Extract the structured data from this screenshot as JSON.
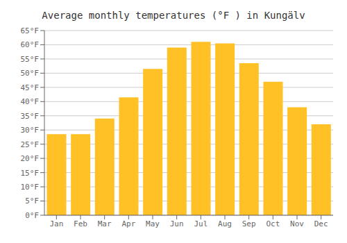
{
  "chart_data": {
    "type": "bar",
    "title": "Average monthly temperatures (°F ) in Kungälv",
    "categories": [
      "Jan",
      "Feb",
      "Mar",
      "Apr",
      "May",
      "Jun",
      "Jul",
      "Aug",
      "Sep",
      "Oct",
      "Nov",
      "Dec"
    ],
    "values": [
      28.5,
      28.5,
      34.0,
      41.5,
      51.5,
      59.0,
      61.0,
      60.5,
      53.5,
      47.0,
      38.0,
      32.0
    ],
    "color": "#FFC125",
    "ylim": [
      0,
      65
    ],
    "yticks": [
      {
        "value": 0,
        "label": "0°F"
      },
      {
        "value": 5,
        "label": "5°F"
      },
      {
        "value": 10,
        "label": "10°F"
      },
      {
        "value": 15,
        "label": "15°F"
      },
      {
        "value": 20,
        "label": "20°F"
      },
      {
        "value": 25,
        "label": "25°F"
      },
      {
        "value": 30,
        "label": "30°F"
      },
      {
        "value": 35,
        "label": "35°F"
      },
      {
        "value": 40,
        "label": "40°F"
      },
      {
        "value": 45,
        "label": "45°F"
      },
      {
        "value": 50,
        "label": "50°F"
      },
      {
        "value": 55,
        "label": "55°F"
      },
      {
        "value": 60,
        "label": "60°F"
      },
      {
        "value": 65,
        "label": "65°F"
      }
    ],
    "grid": true
  }
}
